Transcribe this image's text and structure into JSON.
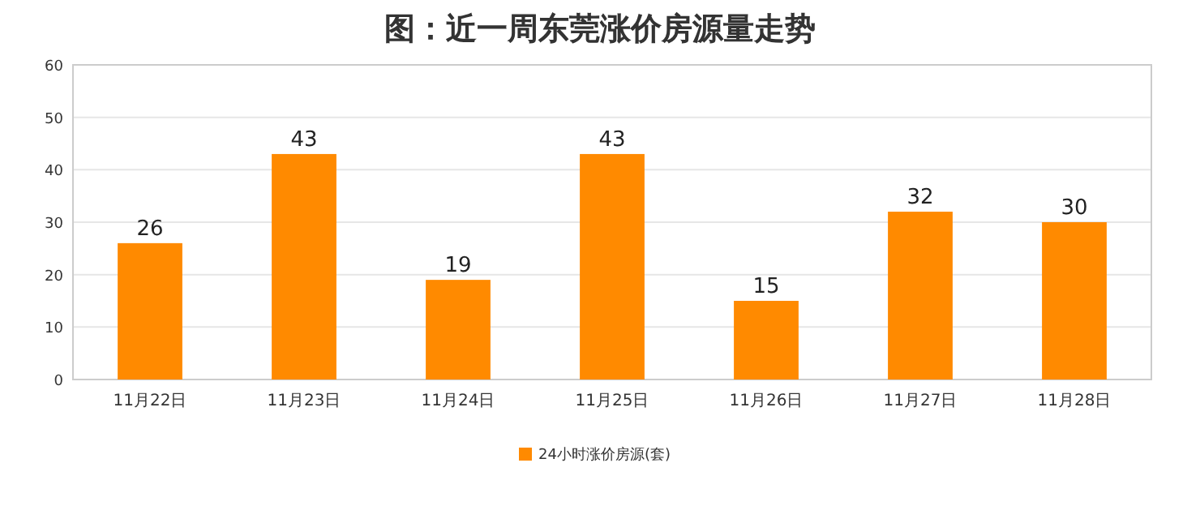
{
  "chart_data": {
    "type": "bar",
    "title": "图：近一周东莞涨价房源量走势",
    "categories": [
      "11月22日",
      "11月23日",
      "11月24日",
      "11月25日",
      "11月26日",
      "11月27日",
      "11月28日"
    ],
    "series": [
      {
        "name": "24小时涨价房源(套)",
        "color": "#ff8a00",
        "values": [
          26,
          43,
          19,
          43,
          15,
          32,
          30
        ]
      }
    ],
    "ylim": [
      0,
      60
    ],
    "yticks": [
      0,
      10,
      20,
      30,
      40,
      50,
      60
    ],
    "grid": "y",
    "legend": "bottom",
    "data_labels": true
  }
}
